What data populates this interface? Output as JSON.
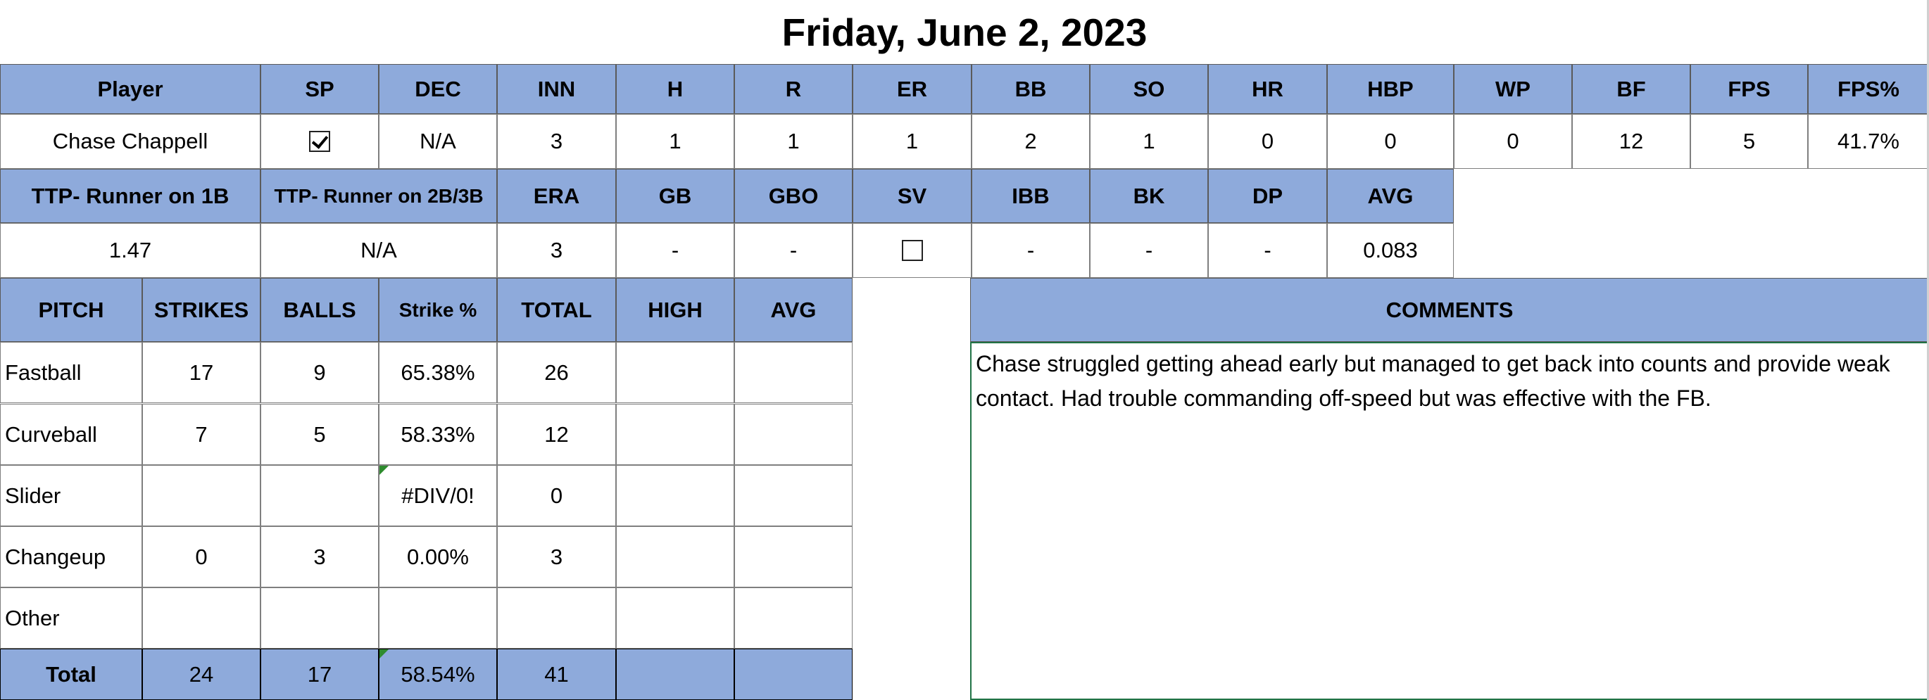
{
  "title": "Friday, June 2, 2023",
  "stats_headers": [
    "Player",
    "SP",
    "DEC",
    "INN",
    "H",
    "R",
    "ER",
    "BB",
    "SO",
    "HR",
    "HBP",
    "WP",
    "BF",
    "FPS",
    "FPS%"
  ],
  "stats_row": {
    "player": "Chase Chappell",
    "sp_checked": true,
    "values": [
      "N/A",
      "3",
      "1",
      "1",
      "1",
      "2",
      "1",
      "0",
      "0",
      "0",
      "12",
      "5",
      "41.7%"
    ]
  },
  "extra_headers": [
    "TTP- Runner on 1B",
    "TTP- Runner on 2B/3B",
    "ERA",
    "GB",
    "GBO",
    "SV",
    "IBB",
    "BK",
    "DP",
    "AVG"
  ],
  "extra_row": {
    "ttp1": "1.47",
    "ttp2": "N/A",
    "era": "3",
    "gb": "-",
    "gbo": "-",
    "sv_checked": false,
    "ibb": "-",
    "bk": "-",
    "dp": "-",
    "avg": "0.083"
  },
  "pitch_headers": [
    "PITCH",
    "STRIKES",
    "BALLS",
    "Strike %",
    "TOTAL",
    "HIGH",
    "AVG"
  ],
  "pitches": [
    {
      "pitch": "Fastball",
      "strikes": "17",
      "balls": "9",
      "strike_pct": "65.38%",
      "total": "26",
      "high": "",
      "avg": ""
    },
    {
      "pitch": "Curveball",
      "strikes": "7",
      "balls": "5",
      "strike_pct": "58.33%",
      "total": "12",
      "high": "",
      "avg": ""
    },
    {
      "pitch": "Slider",
      "strikes": "",
      "balls": "",
      "strike_pct": "#DIV/0!",
      "total": "0",
      "high": "",
      "avg": ""
    },
    {
      "pitch": "Changeup",
      "strikes": "0",
      "balls": "3",
      "strike_pct": "0.00%",
      "total": "3",
      "high": "",
      "avg": ""
    },
    {
      "pitch": "Other",
      "strikes": "",
      "balls": "",
      "strike_pct": "",
      "total": "",
      "high": "",
      "avg": ""
    }
  ],
  "pitch_total": {
    "pitch": "Total",
    "strikes": "24",
    "balls": "17",
    "strike_pct": "58.54%",
    "total": "41",
    "high": "",
    "avg": ""
  },
  "comments": {
    "header": "COMMENTS",
    "text": "Chase struggled getting ahead early but managed to get back into counts and provide weak contact. Had trouble commanding off-speed but was effective with the FB."
  },
  "colors": {
    "header_fill": "#8eaadb",
    "grid": "#7f7f7f",
    "selection": "#217346",
    "error_indicator": "#2e8b2e"
  }
}
